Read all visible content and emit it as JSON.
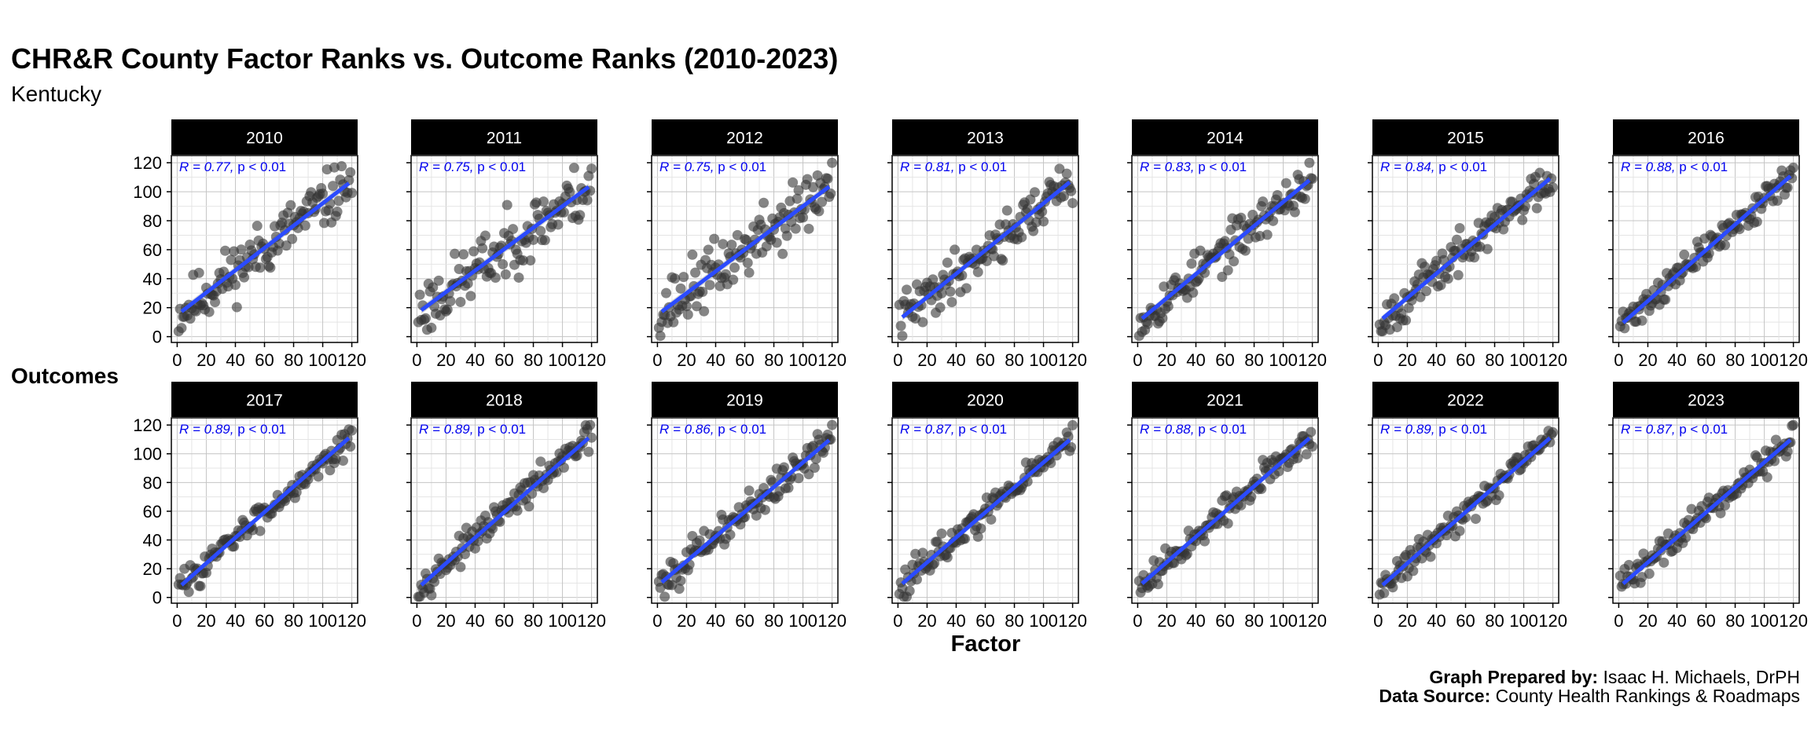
{
  "chart_data": {
    "type": "scatter",
    "title": "CHR&R County Factor Ranks vs. Outcome Ranks (2010-2023)",
    "subtitle": "Kentucky",
    "xlabel": "Factor",
    "ylabel": "Outcomes",
    "xlim": [
      -4,
      124
    ],
    "ylim": [
      -4,
      125
    ],
    "x_ticks": [
      0,
      20,
      40,
      60,
      80,
      100,
      120
    ],
    "y_ticks": [
      0,
      20,
      40,
      60,
      80,
      100,
      120
    ],
    "grid": true,
    "regression_line": true,
    "point_color": "#333333",
    "line_color": "#2b4bff",
    "annotation_color": "#0000ee",
    "panels": [
      {
        "year": "2010",
        "label_r": "R = 0.77, ",
        "label_p": "p < 0.01",
        "r": 0.77,
        "intercept": 15,
        "slope": 0.77,
        "seed": 11
      },
      {
        "year": "2011",
        "label_r": "R = 0.75, ",
        "label_p": "p < 0.01",
        "r": 0.75,
        "intercept": 16,
        "slope": 0.74,
        "seed": 23
      },
      {
        "year": "2012",
        "label_r": "R = 0.75, ",
        "label_p": "p < 0.01",
        "r": 0.75,
        "intercept": 15,
        "slope": 0.75,
        "seed": 37
      },
      {
        "year": "2013",
        "label_r": "R = 0.81, ",
        "label_p": "p < 0.01",
        "r": 0.81,
        "intercept": 11,
        "slope": 0.81,
        "seed": 41
      },
      {
        "year": "2014",
        "label_r": "R = 0.83, ",
        "label_p": "p < 0.01",
        "r": 0.83,
        "intercept": 10,
        "slope": 0.83,
        "seed": 53
      },
      {
        "year": "2015",
        "label_r": "R = 0.84, ",
        "label_p": "p < 0.01",
        "r": 0.84,
        "intercept": 10,
        "slope": 0.84,
        "seed": 67
      },
      {
        "year": "2016",
        "label_r": "R = 0.88, ",
        "label_p": "p < 0.01",
        "r": 0.88,
        "intercept": 7,
        "slope": 0.88,
        "seed": 71
      },
      {
        "year": "2017",
        "label_r": "R = 0.89, ",
        "label_p": "p < 0.01",
        "r": 0.89,
        "intercept": 6,
        "slope": 0.89,
        "seed": 83
      },
      {
        "year": "2018",
        "label_r": "R = 0.89, ",
        "label_p": "p < 0.01",
        "r": 0.89,
        "intercept": 6,
        "slope": 0.89,
        "seed": 97
      },
      {
        "year": "2019",
        "label_r": "R = 0.86, ",
        "label_p": "p < 0.01",
        "r": 0.86,
        "intercept": 8,
        "slope": 0.86,
        "seed": 101
      },
      {
        "year": "2020",
        "label_r": "R = 0.87, ",
        "label_p": "p < 0.01",
        "r": 0.87,
        "intercept": 7,
        "slope": 0.87,
        "seed": 113
      },
      {
        "year": "2021",
        "label_r": "R = 0.88, ",
        "label_p": "p < 0.01",
        "r": 0.88,
        "intercept": 7,
        "slope": 0.88,
        "seed": 127
      },
      {
        "year": "2022",
        "label_r": "R = 0.89, ",
        "label_p": "p < 0.01",
        "r": 0.89,
        "intercept": 6,
        "slope": 0.89,
        "seed": 131
      },
      {
        "year": "2023",
        "label_r": "R = 0.87, ",
        "label_p": "p < 0.01",
        "r": 0.87,
        "intercept": 7,
        "slope": 0.87,
        "seed": 139
      }
    ]
  },
  "caption": {
    "prepared_label": "Graph Prepared by:",
    "prepared_value": " Isaac H. Michaels, DrPH",
    "source_label": "Data Source:",
    "source_value": " County Health Rankings & Roadmaps"
  }
}
